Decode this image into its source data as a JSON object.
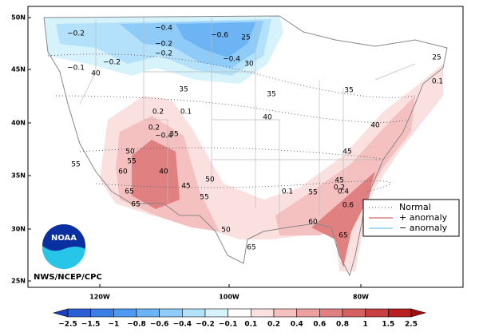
{
  "axes": {
    "lat_labels": [
      "50N",
      "45N",
      "40N",
      "35N",
      "30N",
      "25N"
    ],
    "lon_labels": [
      "120W",
      "100W",
      "80W"
    ]
  },
  "colorbar": {
    "labels": [
      "−2.5",
      "−1.5",
      "−1",
      "−0.8",
      "−0.6",
      "−0.4",
      "−0.2",
      "−0.1",
      "0.1",
      "0.2",
      "0.4",
      "0.6",
      "0.8",
      "1",
      "1.5",
      "2.5"
    ]
  },
  "legend": {
    "items": [
      "Normal",
      "+ anomaly",
      "− anomaly"
    ]
  },
  "logo": {
    "text": "NOAA",
    "caption": "NWS/NCEP/CPC"
  },
  "contour_labels": [
    "−0.2",
    "−0.4",
    "−0.6",
    "25",
    "−0.2",
    "−0.4",
    "−0.2",
    "30",
    "−0.1",
    "40",
    "35",
    "35",
    "−0.2",
    "35",
    "40",
    "45",
    "50",
    "55",
    "60",
    "65",
    "40",
    "45",
    "50",
    "55",
    "65",
    "0.2",
    "0.1",
    "−0.4",
    "0.2",
    "35",
    "40",
    "45",
    "50",
    "0.1",
    "55",
    "0.2",
    "0.4",
    "60",
    "0.6",
    "65",
    "55",
    "65",
    "25",
    "0.1"
  ]
}
